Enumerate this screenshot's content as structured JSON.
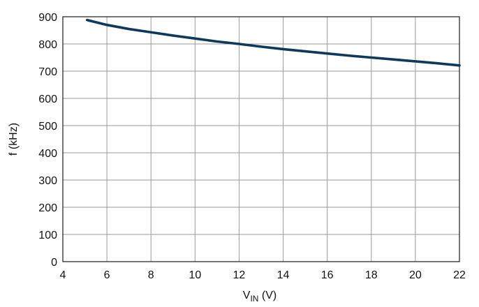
{
  "chart_data": {
    "type": "line",
    "xlabel": {
      "main": "V",
      "subscript": "IN",
      "unit": " (V)"
    },
    "ylabel": "f (kHz)",
    "xlim": [
      4,
      22
    ],
    "ylim": [
      0,
      900
    ],
    "x_ticks": [
      4,
      6,
      8,
      10,
      12,
      14,
      16,
      18,
      20,
      22
    ],
    "y_ticks": [
      0,
      100,
      200,
      300,
      400,
      500,
      600,
      700,
      800,
      900
    ],
    "grid": true,
    "series": [
      {
        "color": "#0d3a5c",
        "x": [
          5.1,
          6,
          7,
          8,
          9,
          10,
          11,
          12,
          13,
          14,
          15,
          16,
          17,
          18,
          19,
          20,
          21,
          22
        ],
        "y": [
          888,
          870,
          855,
          843,
          831,
          820,
          809,
          800,
          790,
          781,
          773,
          765,
          757,
          750,
          743,
          736,
          729,
          721
        ]
      }
    ]
  }
}
